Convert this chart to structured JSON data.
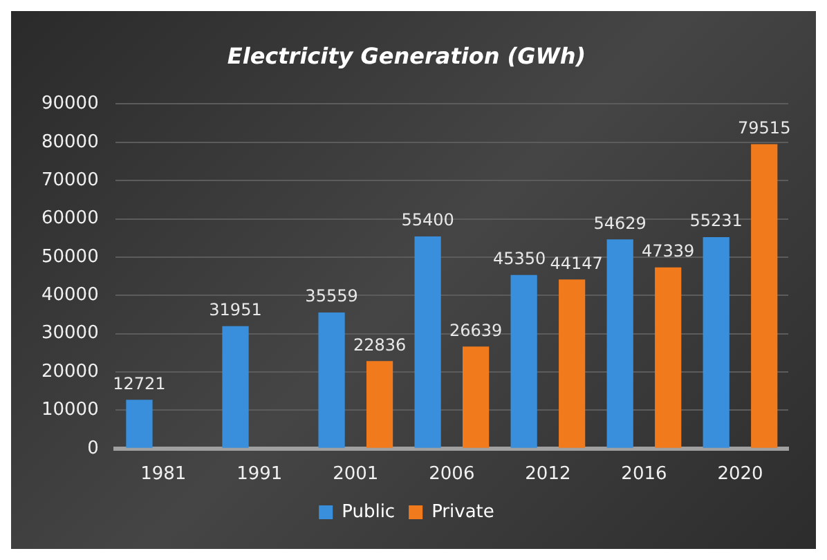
{
  "chart_data": {
    "type": "bar",
    "title": "Electricity Generation (GWh)",
    "categories": [
      "1981",
      "1991",
      "2001",
      "2006",
      "2012",
      "2016",
      "2020"
    ],
    "series": [
      {
        "name": "Public",
        "color": "#3a8fdc",
        "values": [
          12721,
          31951,
          35559,
          55400,
          45350,
          54629,
          55231
        ]
      },
      {
        "name": "Private",
        "color": "#f07a1c",
        "values": [
          null,
          null,
          22836,
          26639,
          44147,
          47339,
          79515
        ]
      }
    ],
    "ylim": [
      0,
      90000
    ],
    "yticks": [
      0,
      10000,
      20000,
      30000,
      40000,
      50000,
      60000,
      70000,
      80000,
      90000
    ],
    "grid": "y",
    "legend": "bottom",
    "data_labels": true
  }
}
